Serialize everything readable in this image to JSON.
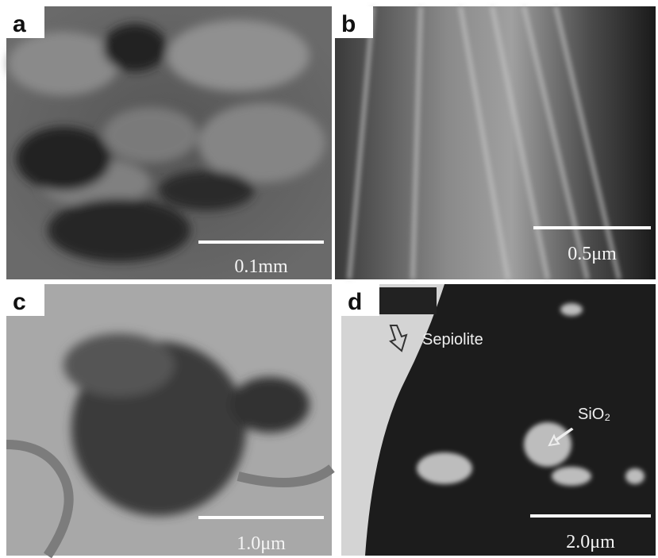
{
  "panels": [
    {
      "label": "a",
      "scale_bar": "0.1mm"
    },
    {
      "label": "b",
      "scale_bar": "0.5μm"
    },
    {
      "label": "c",
      "scale_bar": "1.0μm"
    },
    {
      "label": "d",
      "scale_bar": "2.0μm",
      "annotations": [
        "Sepiolite",
        "SiO₂"
      ]
    }
  ]
}
